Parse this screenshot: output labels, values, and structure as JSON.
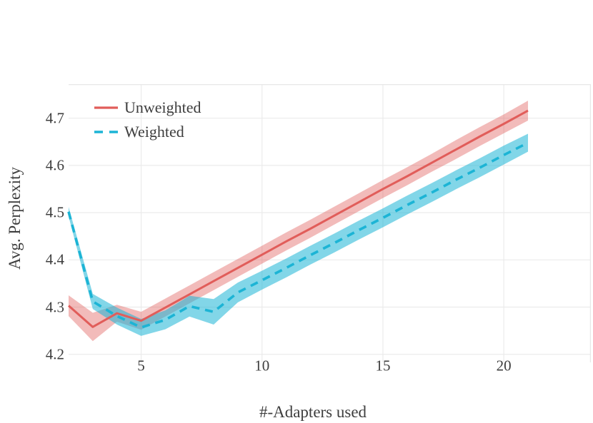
{
  "figure": {
    "background": "#ffffff"
  },
  "colors": {
    "grid": "#ebebeb",
    "panel_border": "#e7e7e7",
    "text": "#3e3e3e"
  },
  "axes": {
    "x_title": "#-Adapters used",
    "y_title": "Avg. Perplexity"
  },
  "chart_data": {
    "type": "line",
    "title": "",
    "xlabel": "#-Adapters used",
    "ylabel": "Avg. Perplexity",
    "grid": true,
    "legend_position": "top-left-inside",
    "xlim": [
      2,
      23.6
    ],
    "ylim": [
      4.183,
      4.772
    ],
    "xticks": [
      "5",
      "10",
      "15",
      "20"
    ],
    "yticks": [
      "4.2",
      "4.3",
      "4.4",
      "4.5",
      "4.6",
      "4.7"
    ],
    "x": [
      2,
      3,
      4,
      5,
      6,
      7,
      8,
      9,
      10,
      11,
      12,
      13,
      14,
      15,
      16,
      17,
      18,
      19,
      20,
      21
    ],
    "series": [
      {
        "name": "Unweighted",
        "style": "solid",
        "color": "#e15d5a",
        "band_color": "rgba(225,93,90,0.42)",
        "values": [
          4.303,
          4.258,
          4.287,
          4.271,
          4.299,
          4.327,
          4.355,
          4.383,
          4.411,
          4.439,
          4.466,
          4.494,
          4.522,
          4.55,
          4.577,
          4.605,
          4.633,
          4.661,
          4.688,
          4.716
        ],
        "err": [
          0.022,
          0.03,
          0.018,
          0.019,
          0.019,
          0.019,
          0.019,
          0.019,
          0.019,
          0.019,
          0.019,
          0.019,
          0.019,
          0.019,
          0.019,
          0.019,
          0.02,
          0.02,
          0.02,
          0.021
        ]
      },
      {
        "name": "Weighted",
        "style": "dashed",
        "color": "#1cb4d5",
        "band_color": "rgba(28,180,213,0.55)",
        "values": [
          4.502,
          4.312,
          4.281,
          4.257,
          4.273,
          4.302,
          4.29,
          4.331,
          4.357,
          4.383,
          4.41,
          4.436,
          4.463,
          4.489,
          4.516,
          4.542,
          4.569,
          4.595,
          4.622,
          4.648
        ],
        "err": [
          0.01,
          0.016,
          0.018,
          0.018,
          0.02,
          0.022,
          0.027,
          0.021,
          0.02,
          0.02,
          0.02,
          0.02,
          0.02,
          0.02,
          0.02,
          0.02,
          0.02,
          0.02,
          0.02,
          0.019
        ]
      }
    ]
  }
}
